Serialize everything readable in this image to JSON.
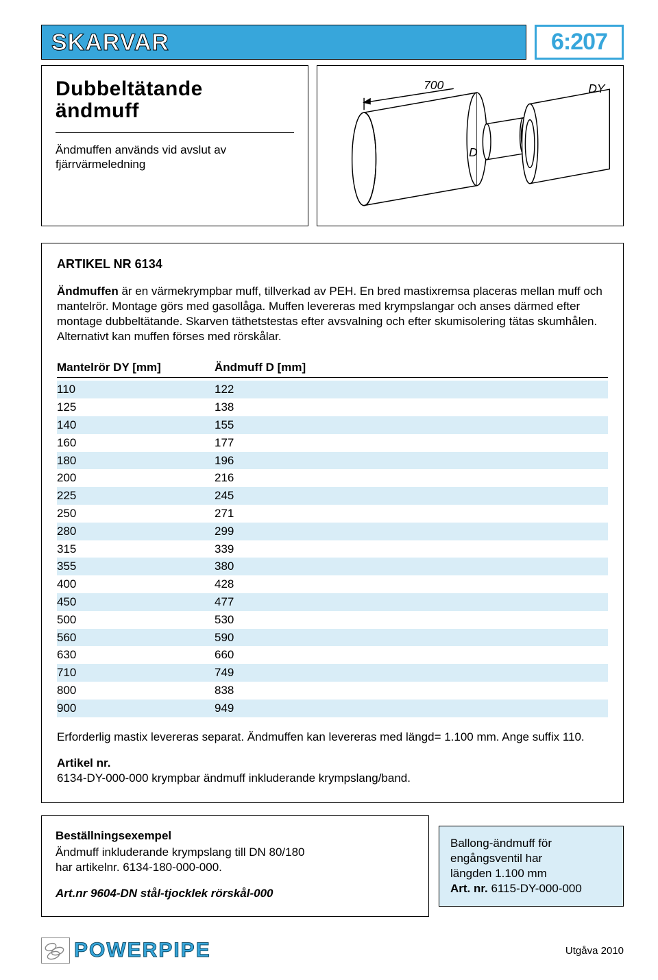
{
  "header": {
    "section_title": "SKARVAR",
    "page_code": "6:207",
    "title_bg": "#37a6db",
    "title_text_color": "#ffffff",
    "code_border_color": "#37a6db",
    "code_text_color": "#37a6db"
  },
  "intro": {
    "subtitle_line1": "Dubbeltätande",
    "subtitle_line2": "ändmuff",
    "description": "Ändmuffen används vid avslut av fjärrvärmeledning"
  },
  "diagram": {
    "label_700": "700",
    "label_D": "D",
    "label_DY": "DY",
    "stroke_color": "#000000",
    "fill_color": "#ffffff",
    "font_style": "italic"
  },
  "article": {
    "title": "ARTIKEL NR 6134",
    "paragraph_parts": {
      "lead_bold": "Ändmuffen",
      "body": " är en värmekrympbar muff, tillverkad av PEH. En bred mastixremsa placeras mellan muff och mantelrör. Montage görs med gasollåga. Muffen levereras med krympslangar och anses därmed efter montage dubbeltätande. Skarven täthetstestas efter avsvalning och efter skumisolering tätas skumhålen. Alternativt kan muffen förses med rörskålar."
    }
  },
  "table": {
    "headers": {
      "col1": "Mantelrör DY [mm]",
      "col2": "Ändmuff D [mm]"
    },
    "stripe_color": "#d9edf7",
    "rows": [
      {
        "c1": "110",
        "c2": "122"
      },
      {
        "c1": "125",
        "c2": "138"
      },
      {
        "c1": "140",
        "c2": "155"
      },
      {
        "c1": "160",
        "c2": "177"
      },
      {
        "c1": "180",
        "c2": "196"
      },
      {
        "c1": "200",
        "c2": "216"
      },
      {
        "c1": "225",
        "c2": "245"
      },
      {
        "c1": "250",
        "c2": "271"
      },
      {
        "c1": "280",
        "c2": "299"
      },
      {
        "c1": "315",
        "c2": "339"
      },
      {
        "c1": "355",
        "c2": "380"
      },
      {
        "c1": "400",
        "c2": "428"
      },
      {
        "c1": "450",
        "c2": "477"
      },
      {
        "c1": "500",
        "c2": "530"
      },
      {
        "c1": "560",
        "c2": "590"
      },
      {
        "c1": "630",
        "c2": "660"
      },
      {
        "c1": "710",
        "c2": "749"
      },
      {
        "c1": "800",
        "c2": "838"
      },
      {
        "c1": "900",
        "c2": "949"
      }
    ]
  },
  "after_table": {
    "line1": "Erforderlig mastix levereras separat. Ändmuffen kan levereras med längd= 1.100 mm. Ange suffix 110.",
    "artnr_label": "Artikel nr.",
    "artnr_line": "6134-DY-000-000 krympbar ändmuff inkluderande krympslang/band."
  },
  "order": {
    "title": "Beställningsexempel",
    "line1": "Ändmuff inkluderande krympslang till DN 80/180",
    "line2": "har artikelnr. 6134-180-000-000.",
    "art2": "Art.nr 9604-DN stål-tjocklek rörskål-000"
  },
  "balloon": {
    "l1": "Ballong-ändmuff för",
    "l2": "engångsventil har",
    "l3": "längden 1.100 mm",
    "l4_bold": "Art. nr.",
    "l4_rest": " 6115-DY-000-000",
    "bg": "#d9edf7"
  },
  "footer": {
    "logo_text": "POWERPIPE",
    "logo_color": "#37a6db",
    "edition": "Utgåva 2010"
  }
}
